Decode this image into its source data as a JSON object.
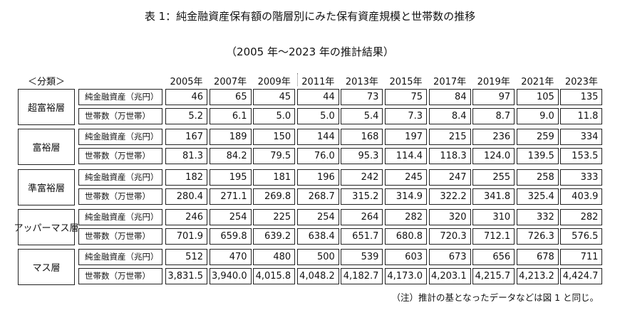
{
  "header": {
    "title": "表 1：純金融資産保有額の階層別にみた保有資産規模と世帯数の推移",
    "subtitle": "（2005 年～2023 年の推計結果）"
  },
  "table": {
    "category_header": "＜分類＞",
    "years": [
      "2005年",
      "2007年",
      "2009年",
      "2011年",
      "2013年",
      "2015年",
      "2017年",
      "2019年",
      "2021年",
      "2023年"
    ],
    "groups": [
      {
        "label": "超富裕層",
        "rows": [
          {
            "label": "純金融資産（兆円）",
            "values": [
              "46",
              "65",
              "45",
              "44",
              "73",
              "75",
              "84",
              "97",
              "105",
              "135"
            ]
          },
          {
            "label": "世帯数（万世帯）",
            "values": [
              "5.2",
              "6.1",
              "5.0",
              "5.0",
              "5.4",
              "7.3",
              "8.4",
              "8.7",
              "9.0",
              "11.8"
            ]
          }
        ]
      },
      {
        "label": "富裕層",
        "rows": [
          {
            "label": "純金融資産（兆円）",
            "values": [
              "167",
              "189",
              "150",
              "144",
              "168",
              "197",
              "215",
              "236",
              "259",
              "334"
            ]
          },
          {
            "label": "世帯数（万世帯）",
            "values": [
              "81.3",
              "84.2",
              "79.5",
              "76.0",
              "95.3",
              "114.4",
              "118.3",
              "124.0",
              "139.5",
              "153.5"
            ]
          }
        ]
      },
      {
        "label": "準富裕層",
        "rows": [
          {
            "label": "純金融資産（兆円）",
            "values": [
              "182",
              "195",
              "181",
              "196",
              "242",
              "245",
              "247",
              "255",
              "258",
              "333"
            ]
          },
          {
            "label": "世帯数（万世帯）",
            "values": [
              "280.4",
              "271.1",
              "269.8",
              "268.7",
              "315.2",
              "314.9",
              "322.2",
              "341.8",
              "325.4",
              "403.9"
            ]
          }
        ]
      },
      {
        "label": "アッパーマス層",
        "rows": [
          {
            "label": "純金融資産（兆円）",
            "values": [
              "246",
              "254",
              "225",
              "254",
              "264",
              "282",
              "320",
              "310",
              "332",
              "282"
            ]
          },
          {
            "label": "世帯数（万世帯）",
            "values": [
              "701.9",
              "659.8",
              "639.2",
              "638.4",
              "651.7",
              "680.8",
              "720.3",
              "712.1",
              "726.3",
              "576.5"
            ]
          }
        ]
      },
      {
        "label": "マス層",
        "rows": [
          {
            "label": "純金融資産（兆円）",
            "values": [
              "512",
              "470",
              "480",
              "500",
              "539",
              "603",
              "673",
              "656",
              "678",
              "711"
            ]
          },
          {
            "label": "世帯数（万世帯）",
            "values": [
              "3,831.5",
              "3,940.0",
              "4,015.8",
              "4,048.2",
              "4,182.7",
              "4,173.0",
              "4,203.1",
              "4,215.7",
              "4,213.2",
              "4,424.7"
            ]
          }
        ]
      }
    ]
  },
  "note": "（注）推計の基となったデータなどは図 1 と同じ。"
}
